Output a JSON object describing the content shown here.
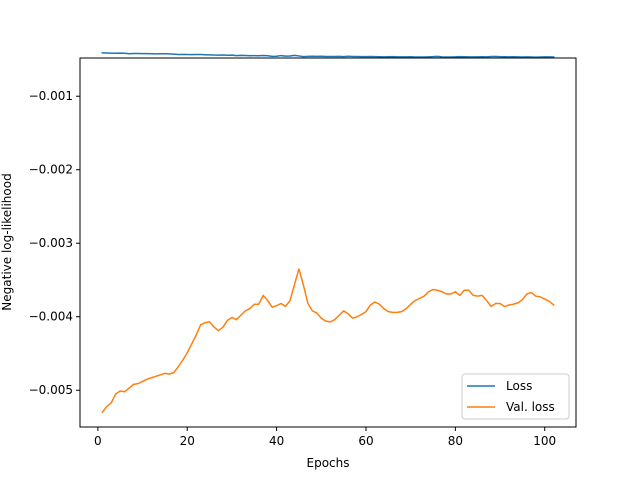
{
  "chart_data": {
    "type": "line",
    "title": "",
    "xlabel": "Epochs",
    "ylabel": "Negative log-likelihood",
    "xlim": [
      -4,
      107
    ],
    "ylim": [
      -0.0055,
      -0.00048
    ],
    "xticks": [
      0,
      20,
      40,
      60,
      80,
      100
    ],
    "xtick_labels": [
      "0",
      "20",
      "40",
      "60",
      "80",
      "100"
    ],
    "yticks": [
      -0.005,
      -0.004,
      -0.003,
      -0.002,
      -0.001
    ],
    "ytick_labels": [
      "−0.005",
      "−0.004",
      "−0.003",
      "−0.002",
      "−0.001"
    ],
    "grid": false,
    "legend_position": "lower-right",
    "series": [
      {
        "name": "Loss",
        "color": "#1f77b4",
        "x": [
          1,
          2,
          3,
          4,
          5,
          6,
          7,
          8,
          9,
          10,
          11,
          12,
          13,
          14,
          15,
          16,
          17,
          18,
          19,
          20,
          21,
          22,
          23,
          24,
          25,
          26,
          27,
          28,
          29,
          30,
          31,
          32,
          33,
          34,
          35,
          36,
          37,
          38,
          39,
          40,
          41,
          42,
          43,
          44,
          45,
          46,
          47,
          48,
          49,
          50,
          51,
          52,
          53,
          54,
          55,
          56,
          57,
          58,
          59,
          60,
          61,
          62,
          63,
          64,
          65,
          66,
          67,
          68,
          69,
          70,
          71,
          72,
          73,
          74,
          75,
          76,
          77,
          78,
          79,
          80,
          81,
          82,
          83,
          84,
          85,
          86,
          87,
          88,
          89,
          90,
          91,
          92,
          93,
          94,
          95,
          96,
          97,
          98,
          99,
          100,
          101,
          102
        ],
        "y": [
          -0.00041,
          -0.000412,
          -0.000414,
          -0.000416,
          -0.000414,
          -0.000415,
          -0.000422,
          -0.000418,
          -0.000419,
          -0.00042,
          -0.000421,
          -0.000423,
          -0.000424,
          -0.000422,
          -0.000423,
          -0.000424,
          -0.000428,
          -0.000432,
          -0.00043,
          -0.000432,
          -0.000434,
          -0.000433,
          -0.000433,
          -0.000435,
          -0.000437,
          -0.00044,
          -0.000441,
          -0.00044,
          -0.000442,
          -0.000441,
          -0.000448,
          -0.000444,
          -0.000446,
          -0.000449,
          -0.000448,
          -0.00045,
          -0.000446,
          -0.000449,
          -0.000458,
          -0.000456,
          -0.000447,
          -0.000455,
          -0.000453,
          -0.000445,
          -0.000452,
          -0.000461,
          -0.000458,
          -0.000456,
          -0.000458,
          -0.000457,
          -0.000459,
          -0.00046,
          -0.00046,
          -0.000458,
          -0.000461,
          -0.000456,
          -0.000459,
          -0.00046,
          -0.000462,
          -0.000461,
          -0.000459,
          -0.000461,
          -0.000463,
          -0.000464,
          -0.000463,
          -0.000462,
          -0.000465,
          -0.000464,
          -0.000465,
          -0.000463,
          -0.000466,
          -0.000467,
          -0.000466,
          -0.000464,
          -0.000462,
          -0.000458,
          -0.000464,
          -0.000466,
          -0.000467,
          -0.000465,
          -0.000462,
          -0.000463,
          -0.000464,
          -0.000465,
          -0.000464,
          -0.000463,
          -0.000465,
          -0.00046,
          -0.000459,
          -0.000462,
          -0.000463,
          -0.000464,
          -0.000463,
          -0.000465,
          -0.000466,
          -0.000465,
          -0.000467,
          -0.000468,
          -0.000466,
          -0.000464,
          -0.000465,
          -0.000466
        ]
      },
      {
        "name": "Val. loss",
        "color": "#ff7f0e",
        "x": [
          1,
          2,
          3,
          4,
          5,
          6,
          7,
          8,
          9,
          10,
          11,
          12,
          13,
          14,
          15,
          16,
          17,
          18,
          19,
          20,
          21,
          22,
          23,
          24,
          25,
          26,
          27,
          28,
          29,
          30,
          31,
          32,
          33,
          34,
          35,
          36,
          37,
          38,
          39,
          40,
          41,
          42,
          43,
          44,
          45,
          46,
          47,
          48,
          49,
          50,
          51,
          52,
          53,
          54,
          55,
          56,
          57,
          58,
          59,
          60,
          61,
          62,
          63,
          64,
          65,
          66,
          67,
          68,
          69,
          70,
          71,
          72,
          73,
          74,
          75,
          76,
          77,
          78,
          79,
          80,
          81,
          82,
          83,
          84,
          85,
          86,
          87,
          88,
          89,
          90,
          91,
          92,
          93,
          94,
          95,
          96,
          97,
          98,
          99,
          100,
          101,
          102
        ],
        "y": [
          -0.0053,
          -0.00522,
          -0.00517,
          -0.00505,
          -0.00501,
          -0.00502,
          -0.00497,
          -0.00492,
          -0.00491,
          -0.00488,
          -0.00485,
          -0.00483,
          -0.00481,
          -0.00479,
          -0.00477,
          -0.00478,
          -0.00476,
          -0.00468,
          -0.00459,
          -0.00449,
          -0.00437,
          -0.00425,
          -0.00411,
          -0.00408,
          -0.00407,
          -0.00414,
          -0.00419,
          -0.00414,
          -0.00405,
          -0.00401,
          -0.00404,
          -0.00398,
          -0.00392,
          -0.00389,
          -0.00383,
          -0.00383,
          -0.00371,
          -0.00378,
          -0.00387,
          -0.00385,
          -0.00382,
          -0.00386,
          -0.00378,
          -0.00356,
          -0.00335,
          -0.00357,
          -0.00382,
          -0.00392,
          -0.00395,
          -0.00402,
          -0.00406,
          -0.00407,
          -0.00404,
          -0.00398,
          -0.00392,
          -0.00396,
          -0.00402,
          -0.004,
          -0.00397,
          -0.00393,
          -0.00384,
          -0.0038,
          -0.00383,
          -0.00389,
          -0.00393,
          -0.00394,
          -0.00394,
          -0.00393,
          -0.00389,
          -0.00383,
          -0.00378,
          -0.00375,
          -0.00372,
          -0.00366,
          -0.00363,
          -0.00364,
          -0.00366,
          -0.00369,
          -0.00369,
          -0.00366,
          -0.00371,
          -0.00364,
          -0.00364,
          -0.00371,
          -0.00372,
          -0.00371,
          -0.00378,
          -0.00386,
          -0.00382,
          -0.00382,
          -0.00386,
          -0.00384,
          -0.00383,
          -0.00381,
          -0.00377,
          -0.00369,
          -0.00367,
          -0.00372,
          -0.00373,
          -0.00376,
          -0.00379,
          -0.00384
        ]
      }
    ]
  }
}
